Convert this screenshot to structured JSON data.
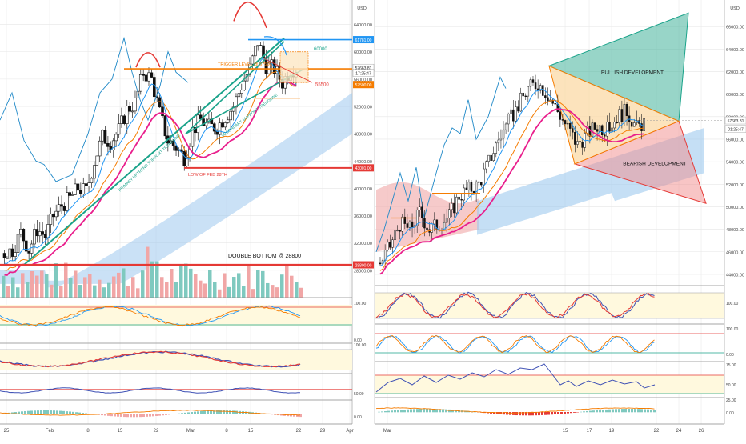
{
  "left_chart": {
    "currency": "USD",
    "price_ticks": [
      "64000.00",
      "60000.00",
      "56000.00",
      "52000.00",
      "48000.00",
      "44000.00",
      "40000.00",
      "36000.00",
      "32000.00",
      "28000.00"
    ],
    "price_ticks_y": [
      64000,
      60000,
      56000,
      52000,
      48000,
      44000,
      40000,
      36000,
      32000,
      28000
    ],
    "x_labels": [
      "25",
      "Feb",
      "8",
      "15",
      "22",
      "Mar",
      "8",
      "15",
      "22",
      "29",
      "Apr"
    ],
    "level_badges": [
      {
        "text": "61781.00",
        "price": 61781,
        "color": "#2196f3"
      },
      {
        "text": "57663.81",
        "price": 57663.81,
        "color": "#ffffff",
        "text_color": "#222222"
      },
      {
        "text": "17:25:47",
        "price": 56900,
        "color": "#ffffff",
        "text_color": "#222222"
      },
      {
        "text": "57500.00",
        "price": 55200,
        "color": "#f57c00"
      },
      {
        "text": "43001.00",
        "price": 43001,
        "color": "#e53935"
      },
      {
        "text": "28800.00",
        "price": 28800,
        "color": "#e53935"
      }
    ],
    "annotations": {
      "trigger": "TRIGGER LEVEL @ 57500",
      "low_feb": "LOW OF FEB 28TH",
      "double_bottom": "DOUBLE BOTTOM @ 28800",
      "secondary": "SECONDARY SUPPORT TRENDLINE",
      "primary": "PRIMARY UPTREND SUPPORT TRENDLINE",
      "target_up": "60000",
      "target_down": "55500"
    },
    "stoch_labels": [
      "100.00"
    ],
    "stoch2_labels": [
      "0.00",
      "100.00"
    ],
    "rsi_labels": [
      "50.00"
    ],
    "macd_labels": [
      "0.00"
    ]
  },
  "right_chart": {
    "currency": "USD",
    "price_ticks": [
      "66000.00",
      "64000.00",
      "62000.00",
      "60000.00",
      "58000.00",
      "56000.00",
      "54000.00",
      "52000.00",
      "50000.00",
      "48000.00",
      "46000.00",
      "44000.00"
    ],
    "price_ticks_y": [
      66000,
      64000,
      62000,
      60000,
      58000,
      56000,
      54000,
      52000,
      50000,
      48000,
      46000,
      44000
    ],
    "x_labels": [
      "Mar",
      "15",
      "17",
      "19",
      "22",
      "24",
      "26"
    ],
    "level_badges": [
      {
        "text": "57663.81",
        "price": 57663.81,
        "color": "#ffffff",
        "text_color": "#222222"
      },
      {
        "text": "01:25:47",
        "price": 56900,
        "color": "#ffffff",
        "text_color": "#222222"
      }
    ],
    "annotations": {
      "bullish": "BULLISH DEVELOPMENT",
      "bearish": "BEARISH DEVELOPMENT"
    },
    "stoch_labels": [
      "100.00"
    ],
    "stoch2_labels": [
      "100.00",
      "0.00"
    ],
    "rsi_labels": [
      "75.00",
      "50.00",
      "25.00"
    ],
    "macd_labels": [
      "0.00"
    ]
  },
  "colors": {
    "up": "#222222",
    "down": "#222222",
    "grid": "#e6e6e6",
    "kumo_bull": "#9fc9ef",
    "kumo_bear": "#f2b3b3",
    "tenkan": "#2196f3",
    "kijun": "#f57c00",
    "pink": "#e91e8c",
    "chikou": "#1e88c7",
    "trend": "#1aa38a",
    "red": "#e53935",
    "orange": "#f57c00",
    "vol_up": "#7fc9bf",
    "vol_dn": "#f1a6a6",
    "osc_bg": "#fff9de"
  },
  "chart_data": [
    {
      "type": "candlestick",
      "title": "",
      "ylabel": "USD",
      "ylim": [
        24000,
        67000
      ],
      "x_categories": [
        "25",
        "Feb",
        "8",
        "15",
        "22",
        "Mar",
        "8",
        "15",
        "22",
        "29",
        "Apr"
      ],
      "levels": [
        61781,
        57663.81,
        57500,
        43001,
        28800
      ],
      "close_path": [
        30500,
        31000,
        33500,
        31000,
        34000,
        33000,
        36000,
        37500,
        38500,
        40000,
        39500,
        44000,
        47500,
        46800,
        48500,
        51500,
        52500,
        57000,
        56000,
        51000,
        47000,
        46000,
        44500,
        48500,
        50000,
        49000,
        49000,
        50500,
        52000,
        55000,
        57500,
        61500,
        58000,
        57500,
        55500,
        57500,
        57700
      ]
    },
    {
      "type": "candlestick",
      "title": "",
      "ylabel": "USD",
      "ylim": [
        43000,
        68000
      ],
      "x_categories": [
        "Mar",
        "15",
        "17",
        "19",
        "22",
        "24",
        "26"
      ],
      "levels": [
        57663.81
      ],
      "close_path": [
        45000,
        46500,
        48500,
        48000,
        49500,
        48000,
        48500,
        49200,
        51000,
        51500,
        52000,
        54000,
        56000,
        57500,
        59000,
        60500,
        61000,
        60000,
        58500,
        57000,
        55500,
        56500,
        57200,
        56800,
        58000,
        58500,
        57000,
        57600
      ]
    }
  ]
}
